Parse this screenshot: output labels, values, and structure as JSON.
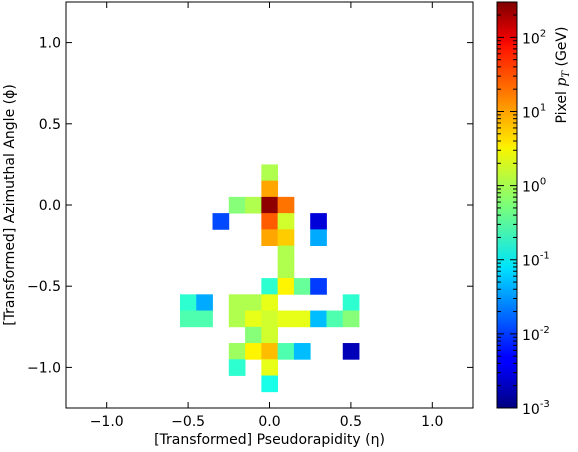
{
  "chart_data": {
    "type": "heatmap",
    "xlabel": "[Transformed] Pseudorapidity (η)",
    "ylabel": "[Transformed] Azimuthal Angle (ϕ)",
    "colorbar_label": "Pixel p_T (GeV)",
    "colorbar_label_parts": {
      "prefix": "Pixel ",
      "symbol": "p",
      "subscript": "T",
      "suffix": " (GeV)"
    },
    "colormap": "jet",
    "colorbar_scale": "log",
    "colorbar_range": [
      0.001,
      300
    ],
    "colorbar_ticks": [
      {
        "value": 0.001,
        "base": "10",
        "exp": "-3"
      },
      {
        "value": 0.01,
        "base": "10",
        "exp": "-2"
      },
      {
        "value": 0.1,
        "base": "10",
        "exp": "-1"
      },
      {
        "value": 1,
        "base": "10",
        "exp": "0"
      },
      {
        "value": 10,
        "base": "10",
        "exp": "1"
      },
      {
        "value": 100,
        "base": "10",
        "exp": "2"
      }
    ],
    "xlim": [
      -1.25,
      1.25
    ],
    "ylim": [
      -1.25,
      1.25
    ],
    "xticks": [
      -1.0,
      -0.5,
      0.0,
      0.5,
      1.0
    ],
    "xtick_labels": [
      "−1.0",
      "−0.5",
      "0.0",
      "0.5",
      "1.0"
    ],
    "yticks": [
      1.0,
      0.5,
      0.0,
      -0.5,
      -1.0
    ],
    "ytick_labels": [
      "1.0",
      "0.5",
      "0.0",
      "−0.5",
      "−1.0"
    ],
    "cell_width": 0.1,
    "cell_height": 0.1,
    "cells": [
      {
        "eta": 0.0,
        "phi": 0.2,
        "pt": 1.0
      },
      {
        "eta": 0.0,
        "phi": 0.1,
        "pt": 8.0
      },
      {
        "eta": -0.2,
        "phi": 0.0,
        "pt": 0.6
      },
      {
        "eta": -0.1,
        "phi": 0.0,
        "pt": 1.0
      },
      {
        "eta": 0.0,
        "phi": 0.0,
        "pt": 250.0
      },
      {
        "eta": 0.1,
        "phi": 0.0,
        "pt": 15.0
      },
      {
        "eta": -0.3,
        "phi": -0.1,
        "pt": 0.012
      },
      {
        "eta": 0.0,
        "phi": -0.1,
        "pt": 20.0
      },
      {
        "eta": 0.1,
        "phi": -0.1,
        "pt": 1.5
      },
      {
        "eta": 0.3,
        "phi": -0.1,
        "pt": 0.003
      },
      {
        "eta": 0.0,
        "phi": -0.2,
        "pt": 8.0
      },
      {
        "eta": 0.1,
        "phi": -0.2,
        "pt": 5.0
      },
      {
        "eta": 0.3,
        "phi": -0.2,
        "pt": 0.04
      },
      {
        "eta": 0.1,
        "phi": -0.3,
        "pt": 1.0
      },
      {
        "eta": 0.1,
        "phi": -0.4,
        "pt": 1.0
      },
      {
        "eta": 0.0,
        "phi": -0.5,
        "pt": 0.2
      },
      {
        "eta": 0.1,
        "phi": -0.5,
        "pt": 3.0
      },
      {
        "eta": 0.2,
        "phi": -0.5,
        "pt": 0.4
      },
      {
        "eta": 0.3,
        "phi": -0.5,
        "pt": 0.01
      },
      {
        "eta": -0.5,
        "phi": -0.6,
        "pt": 0.2
      },
      {
        "eta": -0.4,
        "phi": -0.6,
        "pt": 0.04
      },
      {
        "eta": -0.2,
        "phi": -0.6,
        "pt": 1.0
      },
      {
        "eta": -0.1,
        "phi": -0.6,
        "pt": 1.0
      },
      {
        "eta": 0.0,
        "phi": -0.6,
        "pt": 2.0
      },
      {
        "eta": 0.5,
        "phi": -0.6,
        "pt": 0.2
      },
      {
        "eta": -0.5,
        "phi": -0.7,
        "pt": 0.3
      },
      {
        "eta": -0.4,
        "phi": -0.7,
        "pt": 0.3
      },
      {
        "eta": -0.2,
        "phi": -0.7,
        "pt": 1.0
      },
      {
        "eta": -0.1,
        "phi": -0.7,
        "pt": 2.0
      },
      {
        "eta": 0.0,
        "phi": -0.7,
        "pt": 1.5
      },
      {
        "eta": 0.1,
        "phi": -0.7,
        "pt": 2.0
      },
      {
        "eta": 0.2,
        "phi": -0.7,
        "pt": 2.0
      },
      {
        "eta": 0.3,
        "phi": -0.7,
        "pt": 0.05
      },
      {
        "eta": 0.4,
        "phi": -0.7,
        "pt": 0.3
      },
      {
        "eta": 0.5,
        "phi": -0.7,
        "pt": 0.6
      },
      {
        "eta": -0.1,
        "phi": -0.8,
        "pt": 0.6
      },
      {
        "eta": 0.0,
        "phi": -0.8,
        "pt": 1.5
      },
      {
        "eta": -0.2,
        "phi": -0.9,
        "pt": 0.8
      },
      {
        "eta": -0.1,
        "phi": -0.9,
        "pt": 3.0
      },
      {
        "eta": 0.0,
        "phi": -0.9,
        "pt": 6.0
      },
      {
        "eta": 0.1,
        "phi": -0.9,
        "pt": 0.3
      },
      {
        "eta": 0.2,
        "phi": -0.9,
        "pt": 0.05
      },
      {
        "eta": 0.5,
        "phi": -0.9,
        "pt": 0.002
      },
      {
        "eta": -0.2,
        "phi": -1.0,
        "pt": 0.2
      },
      {
        "eta": 0.0,
        "phi": -1.0,
        "pt": 2.0
      },
      {
        "eta": 0.0,
        "phi": -1.1,
        "pt": 0.15
      }
    ]
  }
}
